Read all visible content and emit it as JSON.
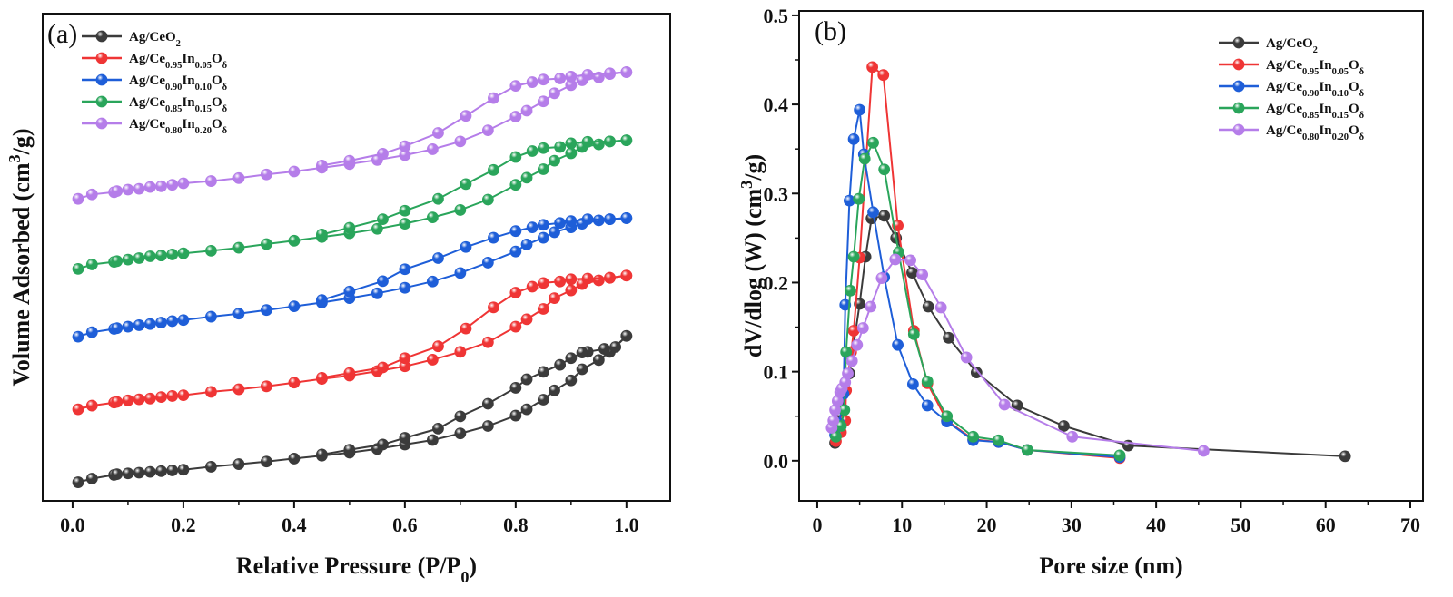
{
  "colors": {
    "Ag/CeO2": "#3b3b3b",
    "Ag/Ce0.95In0.05Oδ": "#ef3535",
    "Ag/Ce0.90In0.10Oδ": "#1e5ed8",
    "Ag/Ce0.85In0.15Oδ": "#2aa55b",
    "Ag/Ce0.80In0.20Oδ": "#b57de9"
  },
  "chart_data": [
    {
      "type": "line",
      "panel_label": "(a)",
      "xlabel": "Relative Pressure (P/P0)",
      "ylabel": "Volume Adsorbed (cm3/g)",
      "xlim": [
        -0.054,
        1.079
      ],
      "ylim": [
        0,
        131.5
      ],
      "y_ticks_shown": false,
      "xticks": [
        "0.0",
        "0.2",
        "0.4",
        "0.6",
        "0.8",
        "1.0"
      ],
      "grid": false,
      "legend": "top-left",
      "x_ads": [
        0.01,
        0.035,
        0.075,
        0.08,
        0.1,
        0.12,
        0.14,
        0.16,
        0.18,
        0.2,
        0.25,
        0.3,
        0.35,
        0.4,
        0.45,
        0.5,
        0.55,
        0.6,
        0.65,
        0.7,
        0.75,
        0.8,
        0.82,
        0.85,
        0.87,
        0.9,
        0.92,
        0.95,
        0.97,
        1.0
      ],
      "series": [
        {
          "name": "Ag/CeO2",
          "adsorption": [
            5.0,
            6.0,
            7.0,
            7.2,
            7.4,
            7.6,
            7.8,
            8.0,
            8.2,
            8.4,
            9.2,
            9.9,
            10.6,
            11.4,
            12.2,
            13.0,
            14.0,
            15.2,
            16.4,
            18.2,
            20.2,
            23.0,
            24.7,
            27.3,
            29.8,
            32.5,
            35.5,
            38.0,
            40.2,
            44.5
          ],
          "desorption_x": [
            1.0,
            0.98,
            0.96,
            0.93,
            0.92,
            0.9,
            0.88,
            0.85,
            0.82,
            0.8,
            0.75,
            0.7,
            0.66,
            0.6,
            0.56,
            0.5,
            0.45
          ],
          "desorption": [
            44.5,
            41.5,
            41.0,
            40.2,
            40.0,
            38.5,
            36.7,
            34.8,
            32.8,
            30.5,
            26.2,
            22.8,
            19.5,
            17.0,
            15.2,
            13.8,
            12.5
          ]
        },
        {
          "name": "Ag/Ce0.95In0.05Oδ",
          "adsorption": [
            24.7,
            25.7,
            26.5,
            26.7,
            27.1,
            27.4,
            27.6,
            28.0,
            28.3,
            28.5,
            29.4,
            30.1,
            30.9,
            31.9,
            32.9,
            33.8,
            35.0,
            36.3,
            38.1,
            40.2,
            42.8,
            47.0,
            49.0,
            51.8,
            54.7,
            56.8,
            58.5,
            59.5,
            60.2,
            60.8
          ],
          "desorption_x": [
            1.0,
            0.97,
            0.93,
            0.9,
            0.88,
            0.85,
            0.83,
            0.8,
            0.76,
            0.71,
            0.66,
            0.6,
            0.56,
            0.5,
            0.45
          ],
          "desorption": [
            60.8,
            60.2,
            60.0,
            59.8,
            59.2,
            58.8,
            57.8,
            56.2,
            52.2,
            46.5,
            41.7,
            38.5,
            36.0,
            34.5,
            33.2
          ]
        },
        {
          "name": "Ag/Ce0.90In0.10Oδ",
          "adsorption": [
            44.3,
            45.5,
            46.4,
            46.6,
            47.0,
            47.4,
            47.7,
            48.1,
            48.5,
            48.8,
            49.7,
            50.5,
            51.5,
            52.5,
            53.5,
            54.7,
            56.0,
            57.5,
            59.2,
            61.5,
            64.3,
            67.3,
            69.2,
            71.0,
            72.5,
            73.8,
            74.8,
            75.7,
            76.0,
            76.3
          ],
          "desorption_x": [
            1.0,
            0.97,
            0.93,
            0.9,
            0.88,
            0.85,
            0.83,
            0.8,
            0.76,
            0.71,
            0.66,
            0.6,
            0.56,
            0.5,
            0.45
          ],
          "desorption": [
            76.3,
            76.0,
            76.0,
            75.5,
            75.0,
            74.5,
            73.8,
            72.8,
            71.0,
            68.5,
            65.5,
            62.5,
            59.3,
            56.5,
            54.2
          ]
        },
        {
          "name": "Ag/Ce0.85In0.15Oδ",
          "adsorption": [
            62.6,
            63.8,
            64.5,
            64.7,
            65.1,
            65.5,
            66.0,
            66.2,
            66.5,
            66.8,
            67.5,
            68.3,
            69.3,
            70.2,
            71.2,
            72.2,
            73.4,
            74.8,
            76.5,
            78.5,
            81.3,
            85.3,
            87.2,
            89.5,
            91.8,
            93.8,
            95.5,
            96.2,
            97.0,
            97.3
          ],
          "desorption_x": [
            1.0,
            0.97,
            0.93,
            0.9,
            0.88,
            0.85,
            0.83,
            0.8,
            0.76,
            0.71,
            0.66,
            0.6,
            0.56,
            0.5,
            0.45
          ],
          "desorption": [
            97.3,
            97.0,
            96.9,
            96.5,
            95.5,
            95.2,
            94.4,
            92.8,
            89.3,
            85.5,
            81.5,
            78.3,
            76.0,
            73.7,
            71.9
          ]
        },
        {
          "name": "Ag/Ce0.80In0.20Oδ",
          "adsorption": [
            81.5,
            82.7,
            83.3,
            83.6,
            84.0,
            84.2,
            84.7,
            84.9,
            85.3,
            85.7,
            86.3,
            87.1,
            88.1,
            88.9,
            89.9,
            90.9,
            92.0,
            93.3,
            94.9,
            97.0,
            100.0,
            103.7,
            105.3,
            107.8,
            110.0,
            112.2,
            113.5,
            114.3,
            115.2,
            115.7
          ],
          "desorption_x": [
            1.0,
            0.97,
            0.93,
            0.9,
            0.88,
            0.85,
            0.83,
            0.8,
            0.76,
            0.71,
            0.66,
            0.6,
            0.56,
            0.5,
            0.45
          ],
          "desorption": [
            115.7,
            115.4,
            115.0,
            114.5,
            114.0,
            113.7,
            113.0,
            112.0,
            108.7,
            103.9,
            99.3,
            95.7,
            93.7,
            91.8,
            90.5
          ]
        }
      ]
    },
    {
      "type": "line",
      "panel_label": "(b)",
      "xlabel": "Pore size (nm)",
      "ylabel": "dV/dlog (W) (cm3/g)",
      "xlim": [
        -2.14,
        71.5
      ],
      "ylim": [
        -0.045,
        0.505
      ],
      "xticks": [
        "0",
        "10",
        "20",
        "30",
        "40",
        "50",
        "60",
        "70"
      ],
      "yticks": [
        "0.0",
        "0.1",
        "0.2",
        "0.3",
        "0.4",
        "0.5"
      ],
      "grid": false,
      "legend": "top-right",
      "series": [
        {
          "name": "Ag/CeO2",
          "x": [
            2.1,
            2.8,
            3.8,
            5.0,
            5.7,
            6.4,
            7.9,
            9.3,
            11.2,
            13.1,
            15.5,
            18.8,
            23.6,
            29.1,
            36.7,
            62.3
          ],
          "y": [
            0.02,
            0.05,
            0.098,
            0.176,
            0.229,
            0.272,
            0.275,
            0.25,
            0.211,
            0.173,
            0.138,
            0.099,
            0.062,
            0.039,
            0.017,
            0.005
          ]
        },
        {
          "name": "Ag/Ce0.95In0.05Oδ",
          "x": [
            2.2,
            2.8,
            3.3,
            3.4,
            4.0,
            4.3,
            5.0,
            6.5,
            7.8,
            9.5,
            11.4,
            13.0,
            15.3,
            18.4,
            21.4,
            24.8,
            35.7
          ],
          "y": [
            0.022,
            0.032,
            0.045,
            0.079,
            0.122,
            0.146,
            0.228,
            0.442,
            0.433,
            0.264,
            0.146,
            0.087,
            0.045,
            0.024,
            0.021,
            0.012,
            0.003
          ]
        },
        {
          "name": "Ag/Ce0.90In0.10Oδ",
          "x": [
            2.1,
            2.6,
            3.1,
            3.3,
            3.8,
            4.3,
            5.0,
            5.5,
            6.6,
            7.9,
            9.5,
            11.3,
            13.0,
            15.3,
            18.4,
            21.4,
            24.8,
            35.7
          ],
          "y": [
            0.029,
            0.042,
            0.075,
            0.175,
            0.292,
            0.361,
            0.394,
            0.344,
            0.279,
            0.206,
            0.13,
            0.086,
            0.062,
            0.044,
            0.023,
            0.021,
            0.012,
            0.004
          ]
        },
        {
          "name": "Ag/Ce0.85In0.15Oδ",
          "x": [
            2.2,
            2.8,
            3.2,
            3.4,
            3.9,
            4.3,
            4.9,
            5.6,
            6.6,
            7.9,
            9.6,
            11.4,
            13.0,
            15.3,
            18.4,
            21.4,
            24.8,
            35.7
          ],
          "y": [
            0.027,
            0.039,
            0.057,
            0.122,
            0.191,
            0.229,
            0.294,
            0.339,
            0.357,
            0.327,
            0.234,
            0.142,
            0.089,
            0.05,
            0.027,
            0.023,
            0.012,
            0.006
          ]
        },
        {
          "name": "Ag/Ce0.80In0.20Oδ",
          "x": [
            1.7,
            1.9,
            2.1,
            2.4,
            2.7,
            2.9,
            3.3,
            3.6,
            4.1,
            4.7,
            5.4,
            6.3,
            7.6,
            9.2,
            11.0,
            12.4,
            14.6,
            17.6,
            22.1,
            30.1,
            45.6
          ],
          "y": [
            0.037,
            0.045,
            0.057,
            0.067,
            0.077,
            0.081,
            0.088,
            0.098,
            0.112,
            0.13,
            0.149,
            0.173,
            0.205,
            0.226,
            0.225,
            0.209,
            0.172,
            0.116,
            0.063,
            0.027,
            0.011
          ]
        }
      ]
    }
  ]
}
